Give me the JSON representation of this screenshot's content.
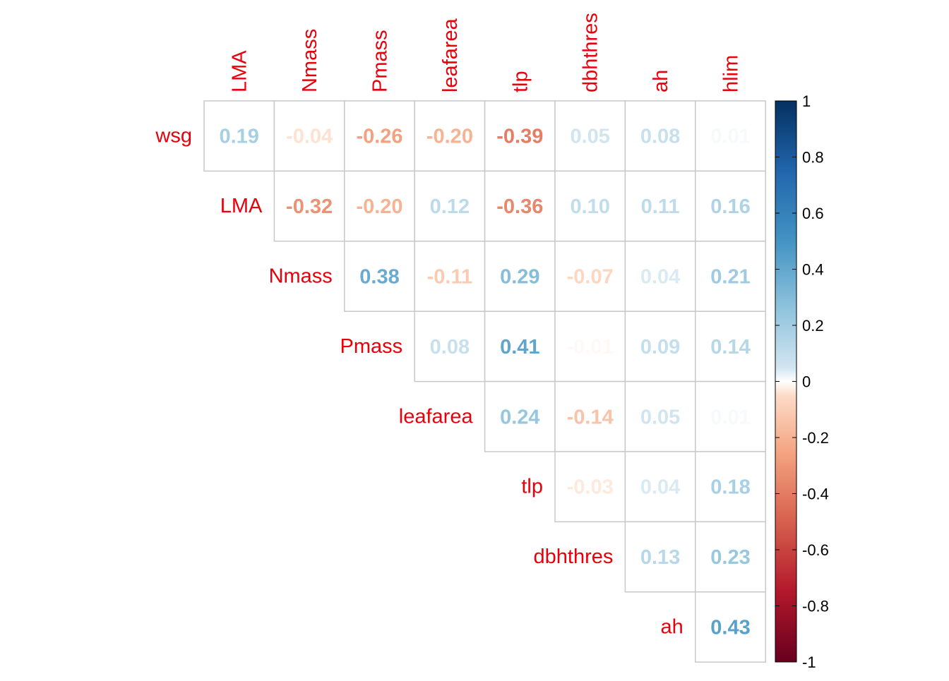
{
  "chart_data": {
    "type": "heatmap",
    "variant": "correlation-matrix-upper-triangle-numbers",
    "row_labels": [
      "wsg",
      "LMA",
      "Nmass",
      "Pmass",
      "leafarea",
      "tlp",
      "dbhthres",
      "ah"
    ],
    "col_labels": [
      "LMA",
      "Nmass",
      "Pmass",
      "leafarea",
      "tlp",
      "dbhthres",
      "ah",
      "hlim"
    ],
    "rows": [
      {
        "label": "wsg",
        "values": [
          0.19,
          -0.04,
          -0.26,
          -0.2,
          -0.39,
          0.05,
          0.08,
          0.01
        ]
      },
      {
        "label": "LMA",
        "values": [
          -0.32,
          -0.2,
          0.12,
          -0.36,
          0.1,
          0.11,
          0.16
        ]
      },
      {
        "label": "Nmass",
        "values": [
          0.38,
          -0.11,
          0.29,
          -0.07,
          0.04,
          0.21
        ]
      },
      {
        "label": "Pmass",
        "values": [
          0.08,
          0.41,
          -0.01,
          0.09,
          0.14
        ]
      },
      {
        "label": "leafarea",
        "values": [
          0.24,
          -0.14,
          0.05,
          0.01
        ]
      },
      {
        "label": "tlp",
        "values": [
          -0.03,
          0.04,
          0.18
        ]
      },
      {
        "label": "dbhthres",
        "values": [
          0.13,
          0.23
        ]
      },
      {
        "label": "ah",
        "values": [
          0.43
        ]
      }
    ],
    "color_scale": {
      "range": [
        -1,
        1
      ],
      "ticks": [
        "1",
        "0.8",
        "0.6",
        "0.4",
        "0.2",
        "0",
        "-0.2",
        "-0.4",
        "-0.6",
        "-0.8",
        "-1"
      ],
      "stops": [
        {
          "v": -1.0,
          "color": "#67001f"
        },
        {
          "v": -0.75,
          "color": "#b2182b"
        },
        {
          "v": -0.5,
          "color": "#d6604d"
        },
        {
          "v": -0.25,
          "color": "#f4a582"
        },
        {
          "v": -0.05,
          "color": "#fddbc7"
        },
        {
          "v": 0.0,
          "color": "#ffffff"
        },
        {
          "v": 0.05,
          "color": "#d1e5f0"
        },
        {
          "v": 0.25,
          "color": "#92c5de"
        },
        {
          "v": 0.5,
          "color": "#4393c3"
        },
        {
          "v": 0.75,
          "color": "#2166ac"
        },
        {
          "v": 1.0,
          "color": "#053061"
        }
      ]
    },
    "label_color": "#e8000b",
    "grid_color": "#c8c8c8",
    "legend_position": "right"
  }
}
